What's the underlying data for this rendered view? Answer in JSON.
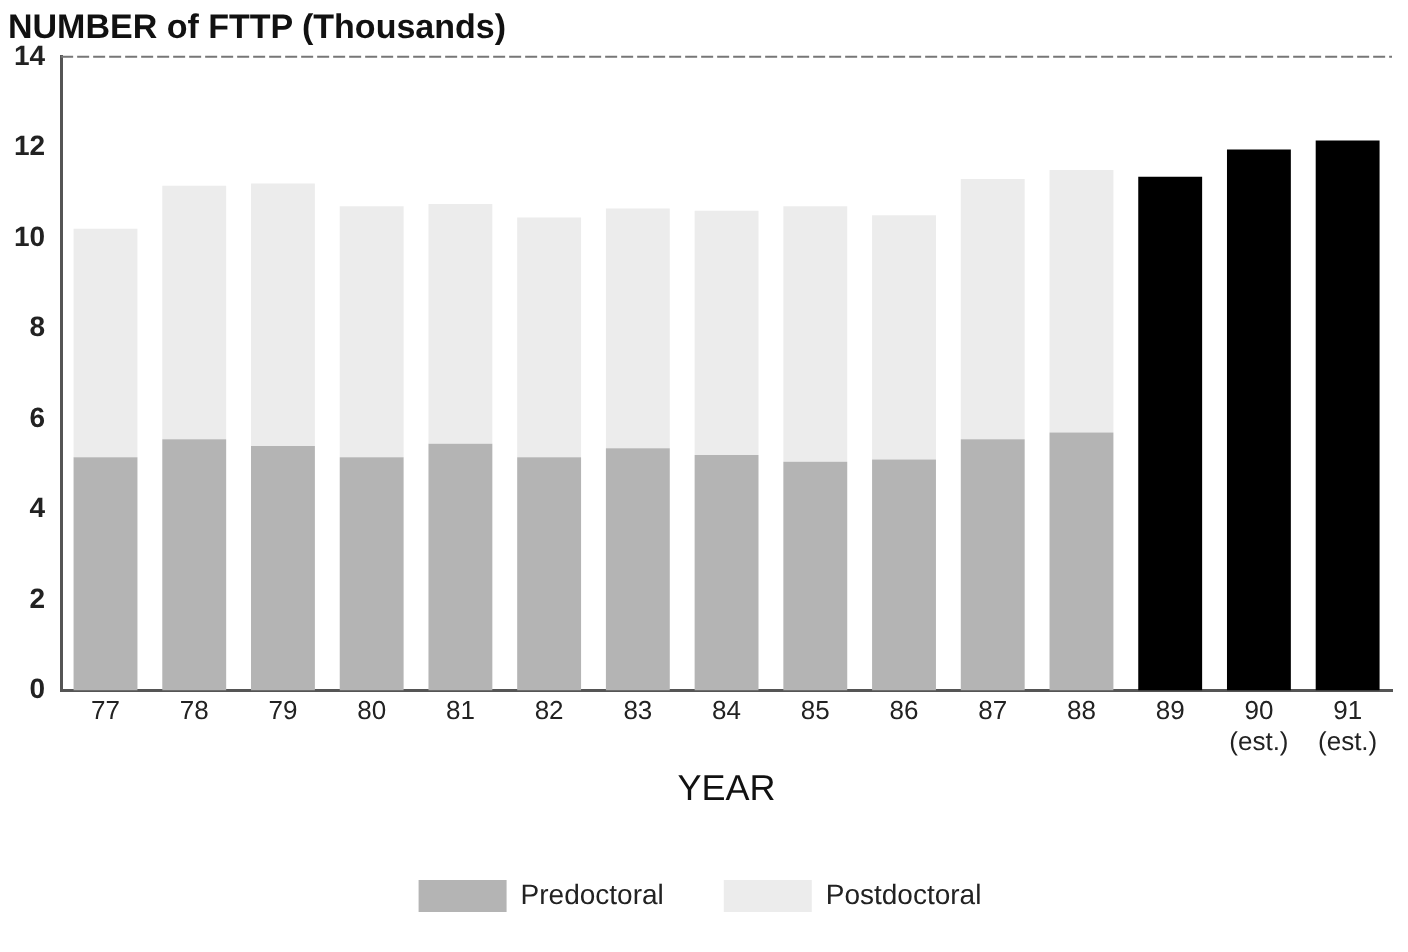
{
  "chart_data": {
    "type": "bar",
    "stacked": true,
    "title": "NUMBER of FTTP (Thousands)",
    "xlabel": "YEAR",
    "categories": [
      "77",
      "78",
      "79",
      "80",
      "81",
      "82",
      "83",
      "84",
      "85",
      "86",
      "87",
      "88",
      "89",
      "90\n(est.)",
      "91\n(est.)"
    ],
    "series": [
      {
        "name": "Predoctoral",
        "color": "#b4b4b4",
        "values": [
          5.15,
          5.55,
          5.4,
          5.15,
          5.45,
          5.15,
          5.35,
          5.2,
          5.05,
          5.1,
          5.55,
          5.7,
          null,
          null,
          null
        ]
      },
      {
        "name": "Postdoctoral",
        "color": "#ececec",
        "values": [
          5.05,
          5.6,
          5.8,
          5.55,
          5.3,
          5.3,
          5.3,
          5.4,
          5.65,
          5.4,
          5.75,
          5.8,
          null,
          null,
          null
        ]
      },
      {
        "color": "#000000",
        "values": [
          null,
          null,
          null,
          null,
          null,
          null,
          null,
          null,
          null,
          null,
          null,
          null,
          11.35,
          11.95,
          12.15
        ]
      }
    ],
    "ylim": [
      0,
      14
    ],
    "yticks": [
      0,
      2,
      4,
      6,
      8,
      10,
      12,
      14
    ],
    "grid": false,
    "legend": "bottom"
  }
}
